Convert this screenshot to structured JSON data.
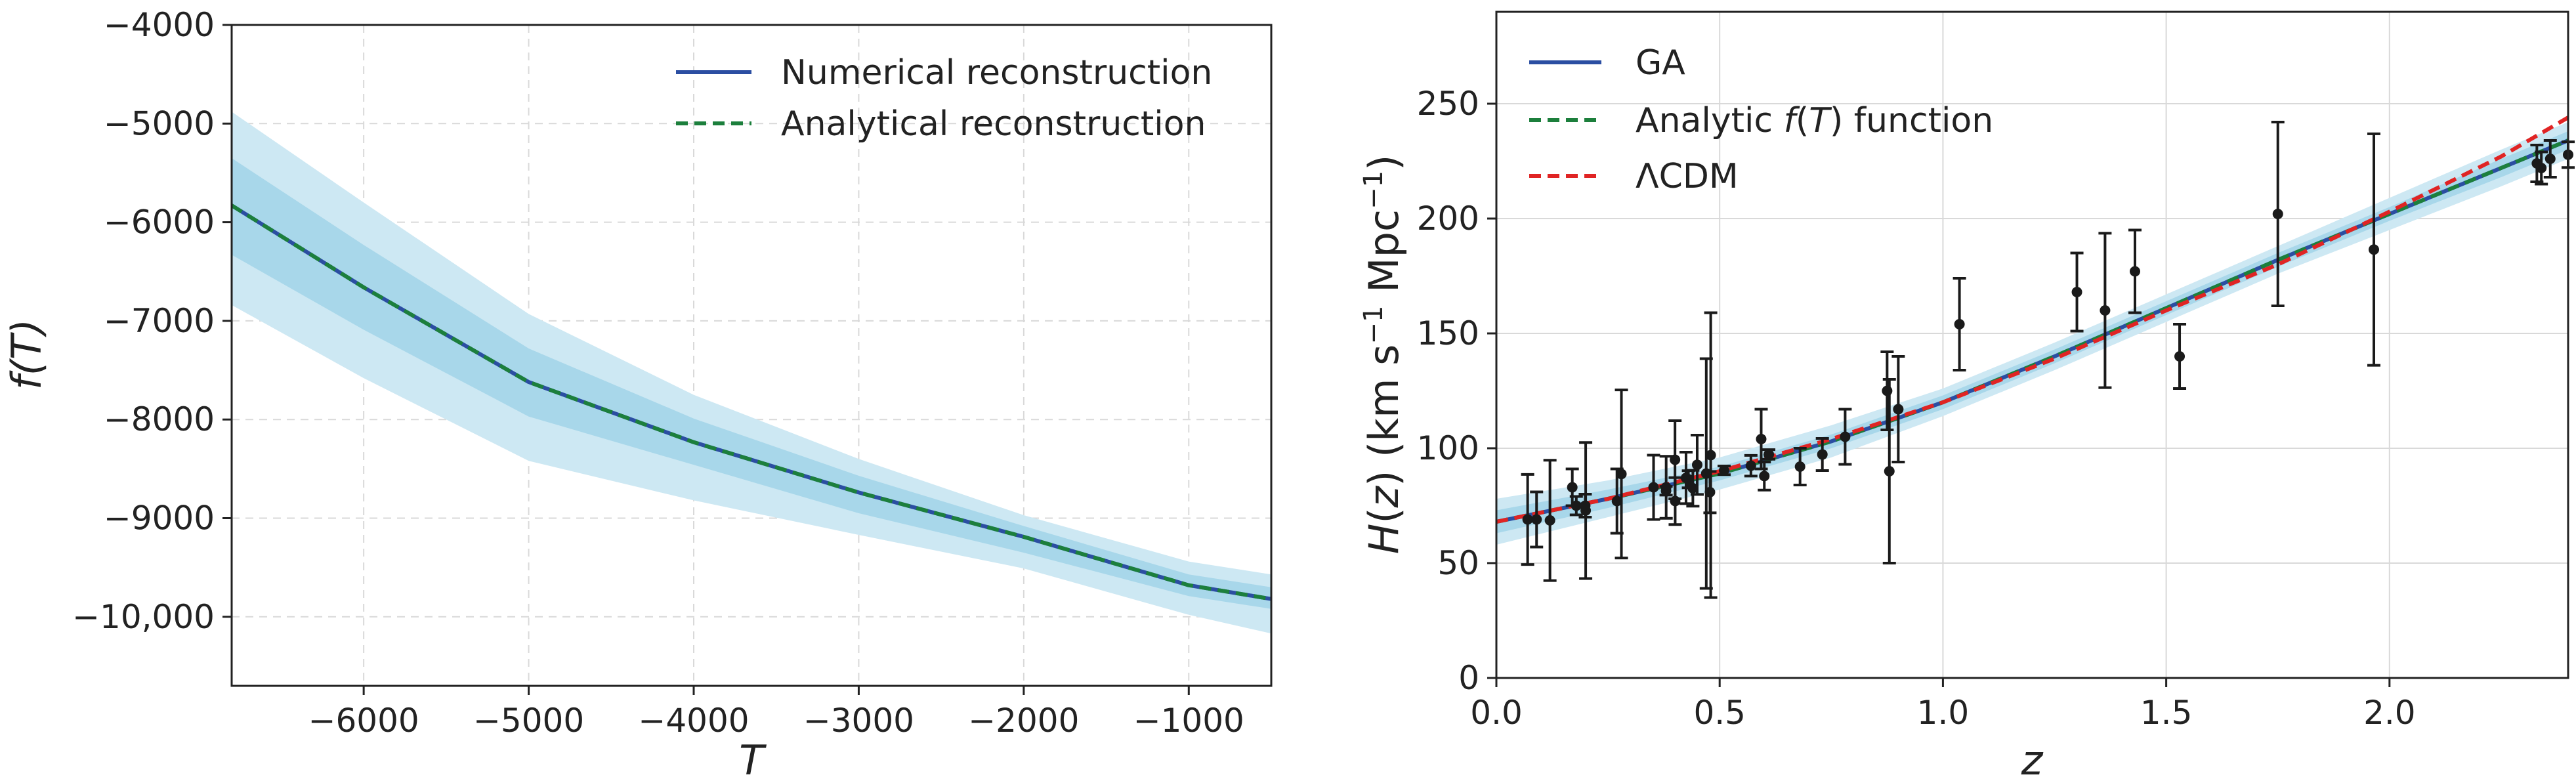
{
  "chart_data": [
    {
      "type": "line",
      "xlabel": "T",
      "ylabel": "f(T)",
      "xlim": [
        -6800,
        -500
      ],
      "ylim": [
        -10700,
        -4000
      ],
      "grid": true,
      "legend_position": "top-right",
      "x_ticks": [
        {
          "value": -6000,
          "label": "−6000"
        },
        {
          "value": -5000,
          "label": "−5000"
        },
        {
          "value": -4000,
          "label": "−4000"
        },
        {
          "value": -3000,
          "label": "−3000"
        },
        {
          "value": -2000,
          "label": "−2000"
        },
        {
          "value": -1000,
          "label": "−1000"
        }
      ],
      "y_ticks": [
        {
          "value": -4000,
          "label": "−4000"
        },
        {
          "value": -5000,
          "label": "−5000"
        },
        {
          "value": -6000,
          "label": "−6000"
        },
        {
          "value": -7000,
          "label": "−7000"
        },
        {
          "value": -8000,
          "label": "−8000"
        },
        {
          "value": -9000,
          "label": "−9000"
        },
        {
          "value": -10000,
          "label": "−10,000"
        }
      ],
      "x": [
        -6800,
        -6000,
        -5000,
        -4000,
        -3000,
        -2000,
        -1000,
        -500
      ],
      "series": [
        {
          "name": "Numerical reconstruction",
          "color": "#2b4ea2",
          "style": "solid",
          "values": [
            -5830,
            -6660,
            -7620,
            -8230,
            -8740,
            -9190,
            -9680,
            -9820
          ]
        },
        {
          "name": "Analytical reconstruction",
          "color": "#1c7f3c",
          "style": "dashed",
          "values": [
            -5830,
            -6660,
            -7620,
            -8230,
            -8740,
            -9190,
            -9680,
            -9820
          ]
        }
      ],
      "bands": [
        {
          "level": "2-sigma",
          "color": "#cde8f3",
          "upper": [
            -4880,
            -5800,
            -6930,
            -7750,
            -8400,
            -8970,
            -9440,
            -9570
          ],
          "lower": [
            -6840,
            -7580,
            -8420,
            -8820,
            -9170,
            -9510,
            -9980,
            -10170
          ]
        },
        {
          "level": "1-sigma",
          "color": "#a8d7ea",
          "upper": [
            -5350,
            -6230,
            -7280,
            -7990,
            -8570,
            -9080,
            -9570,
            -9700
          ],
          "lower": [
            -6330,
            -7090,
            -7970,
            -8460,
            -8950,
            -9350,
            -9790,
            -9920
          ]
        }
      ]
    },
    {
      "type": "line",
      "xlabel": "z",
      "ylabel": "H(z) (km s⁻¹ Mpc⁻¹)",
      "ylabel_parts": {
        "H": "H",
        "open": "(",
        "z": "z",
        "close": ")",
        "unit1": " (km s",
        "sup1": "−1",
        "unit2": " Mpc",
        "sup2": "−1",
        "end": ")"
      },
      "xlim": [
        0,
        2.4
      ],
      "ylim": [
        0,
        290
      ],
      "grid": true,
      "legend_position": "top-left",
      "x_ticks": [
        {
          "value": 0,
          "label": "0.0"
        },
        {
          "value": 0.5,
          "label": "0.5"
        },
        {
          "value": 1.0,
          "label": "1.0"
        },
        {
          "value": 1.5,
          "label": "1.5"
        },
        {
          "value": 2.0,
          "label": "2.0"
        }
      ],
      "y_ticks": [
        {
          "value": 0,
          "label": "0"
        },
        {
          "value": 50,
          "label": "50"
        },
        {
          "value": 100,
          "label": "100"
        },
        {
          "value": 150,
          "label": "150"
        },
        {
          "value": 200,
          "label": "200"
        },
        {
          "value": 250,
          "label": "250"
        }
      ],
      "x": [
        0,
        0.25,
        0.5,
        0.75,
        1.0,
        1.25,
        1.5,
        1.75,
        2.0,
        2.25,
        2.4
      ],
      "series": [
        {
          "name": "GA",
          "color": "#2b4ea2",
          "style": "solid",
          "values": [
            68,
            78,
            89,
            103,
            120,
            140,
            161,
            182,
            202,
            222,
            234
          ]
        },
        {
          "name": "Analytic f(T) function",
          "name_parts": {
            "pre": "Analytic ",
            "italic": "f",
            "open": "(",
            "T": "T",
            "post": ") function"
          },
          "color": "#1c7f3c",
          "style": "dashed",
          "values": [
            68,
            78,
            89,
            103,
            120,
            140,
            161,
            182,
            202,
            222,
            234
          ]
        },
        {
          "name": "ΛCDM",
          "color": "#e02424",
          "style": "dashed",
          "values": [
            68,
            78,
            90,
            104,
            120,
            139,
            160,
            180,
            203,
            227,
            244
          ]
        }
      ],
      "bands": [
        {
          "level": "2-sigma",
          "color": "#cde8f3",
          "upper": [
            78,
            86,
            96,
            110,
            126,
            146,
            167,
            188,
            209,
            230,
            242
          ],
          "lower": [
            58,
            70,
            82,
            96,
            114,
            134,
            155,
            176,
            195,
            214,
            226
          ]
        },
        {
          "level": "1-sigma",
          "color": "#a8d7ea",
          "upper": [
            73,
            82,
            92,
            106,
            123,
            143,
            164,
            185,
            205,
            226,
            238
          ],
          "lower": [
            63,
            74,
            86,
            100,
            117,
            137,
            158,
            179,
            199,
            218,
            230
          ]
        }
      ],
      "observations": {
        "z": [
          0.07,
          0.09,
          0.12,
          0.17,
          0.179,
          0.199,
          0.2,
          0.27,
          0.28,
          0.352,
          0.38,
          0.3802,
          0.4,
          0.4004,
          0.4247,
          0.43,
          0.44,
          0.4497,
          0.47,
          0.4783,
          0.48,
          0.51,
          0.57,
          0.593,
          0.6,
          0.61,
          0.68,
          0.73,
          0.781,
          0.875,
          0.88,
          0.9,
          1.037,
          1.3,
          1.363,
          1.43,
          1.53,
          1.75,
          1.965,
          2.33,
          2.34,
          2.36,
          2.4
        ],
        "H": [
          69,
          69,
          68.6,
          83,
          75,
          75,
          72.9,
          77,
          88.8,
          83,
          81.5,
          83,
          95,
          77,
          87.1,
          86.5,
          82.6,
          92.8,
          89,
          80.9,
          97,
          90.4,
          92.4,
          104,
          87.9,
          97.3,
          92,
          97.3,
          105,
          125,
          90,
          117,
          154,
          168,
          160,
          177,
          140,
          202,
          186.5,
          224,
          222,
          226,
          227.8
        ],
        "err": [
          19.6,
          12,
          26.2,
          8,
          4,
          5,
          29.6,
          14,
          36.6,
          14,
          1.9,
          13.5,
          17,
          10.2,
          11.2,
          3.7,
          7.8,
          12.9,
          50,
          9,
          62,
          1.9,
          4.5,
          13,
          6.1,
          2.1,
          8,
          7,
          12,
          17,
          40,
          23,
          20,
          17,
          33.6,
          18,
          14,
          40,
          50.4,
          8,
          7,
          8,
          5.6
        ]
      }
    }
  ]
}
